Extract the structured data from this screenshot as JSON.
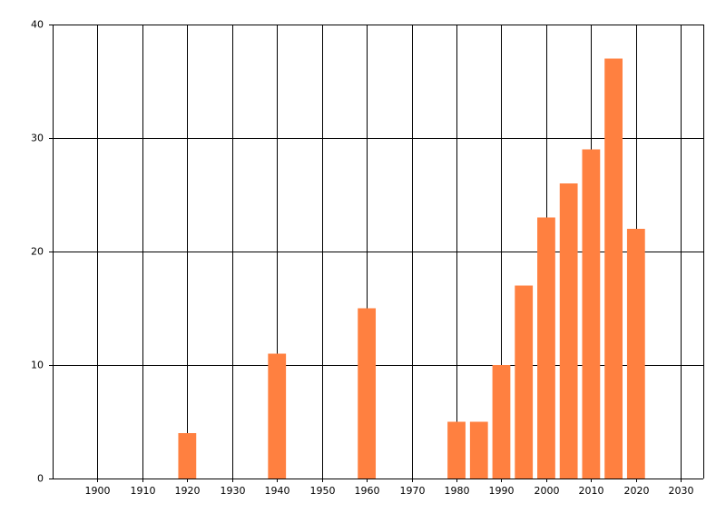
{
  "chart_data": {
    "type": "bar",
    "x": [
      1920,
      1940,
      1960,
      1980,
      1985,
      1990,
      1995,
      2000,
      2005,
      2010,
      2015,
      2020
    ],
    "values": [
      4,
      11,
      15,
      5,
      5,
      10,
      17,
      23,
      26,
      29,
      37,
      22
    ],
    "color": "#ff8040",
    "xlim": [
      1890,
      2035
    ],
    "xticks": [
      1900,
      1910,
      1920,
      1930,
      1940,
      1950,
      1960,
      1970,
      1980,
      1990,
      2000,
      2010,
      2020,
      2030
    ],
    "ylim": [
      0,
      40
    ],
    "yticks": [
      0,
      10,
      20,
      30,
      40
    ],
    "grid": true
  }
}
